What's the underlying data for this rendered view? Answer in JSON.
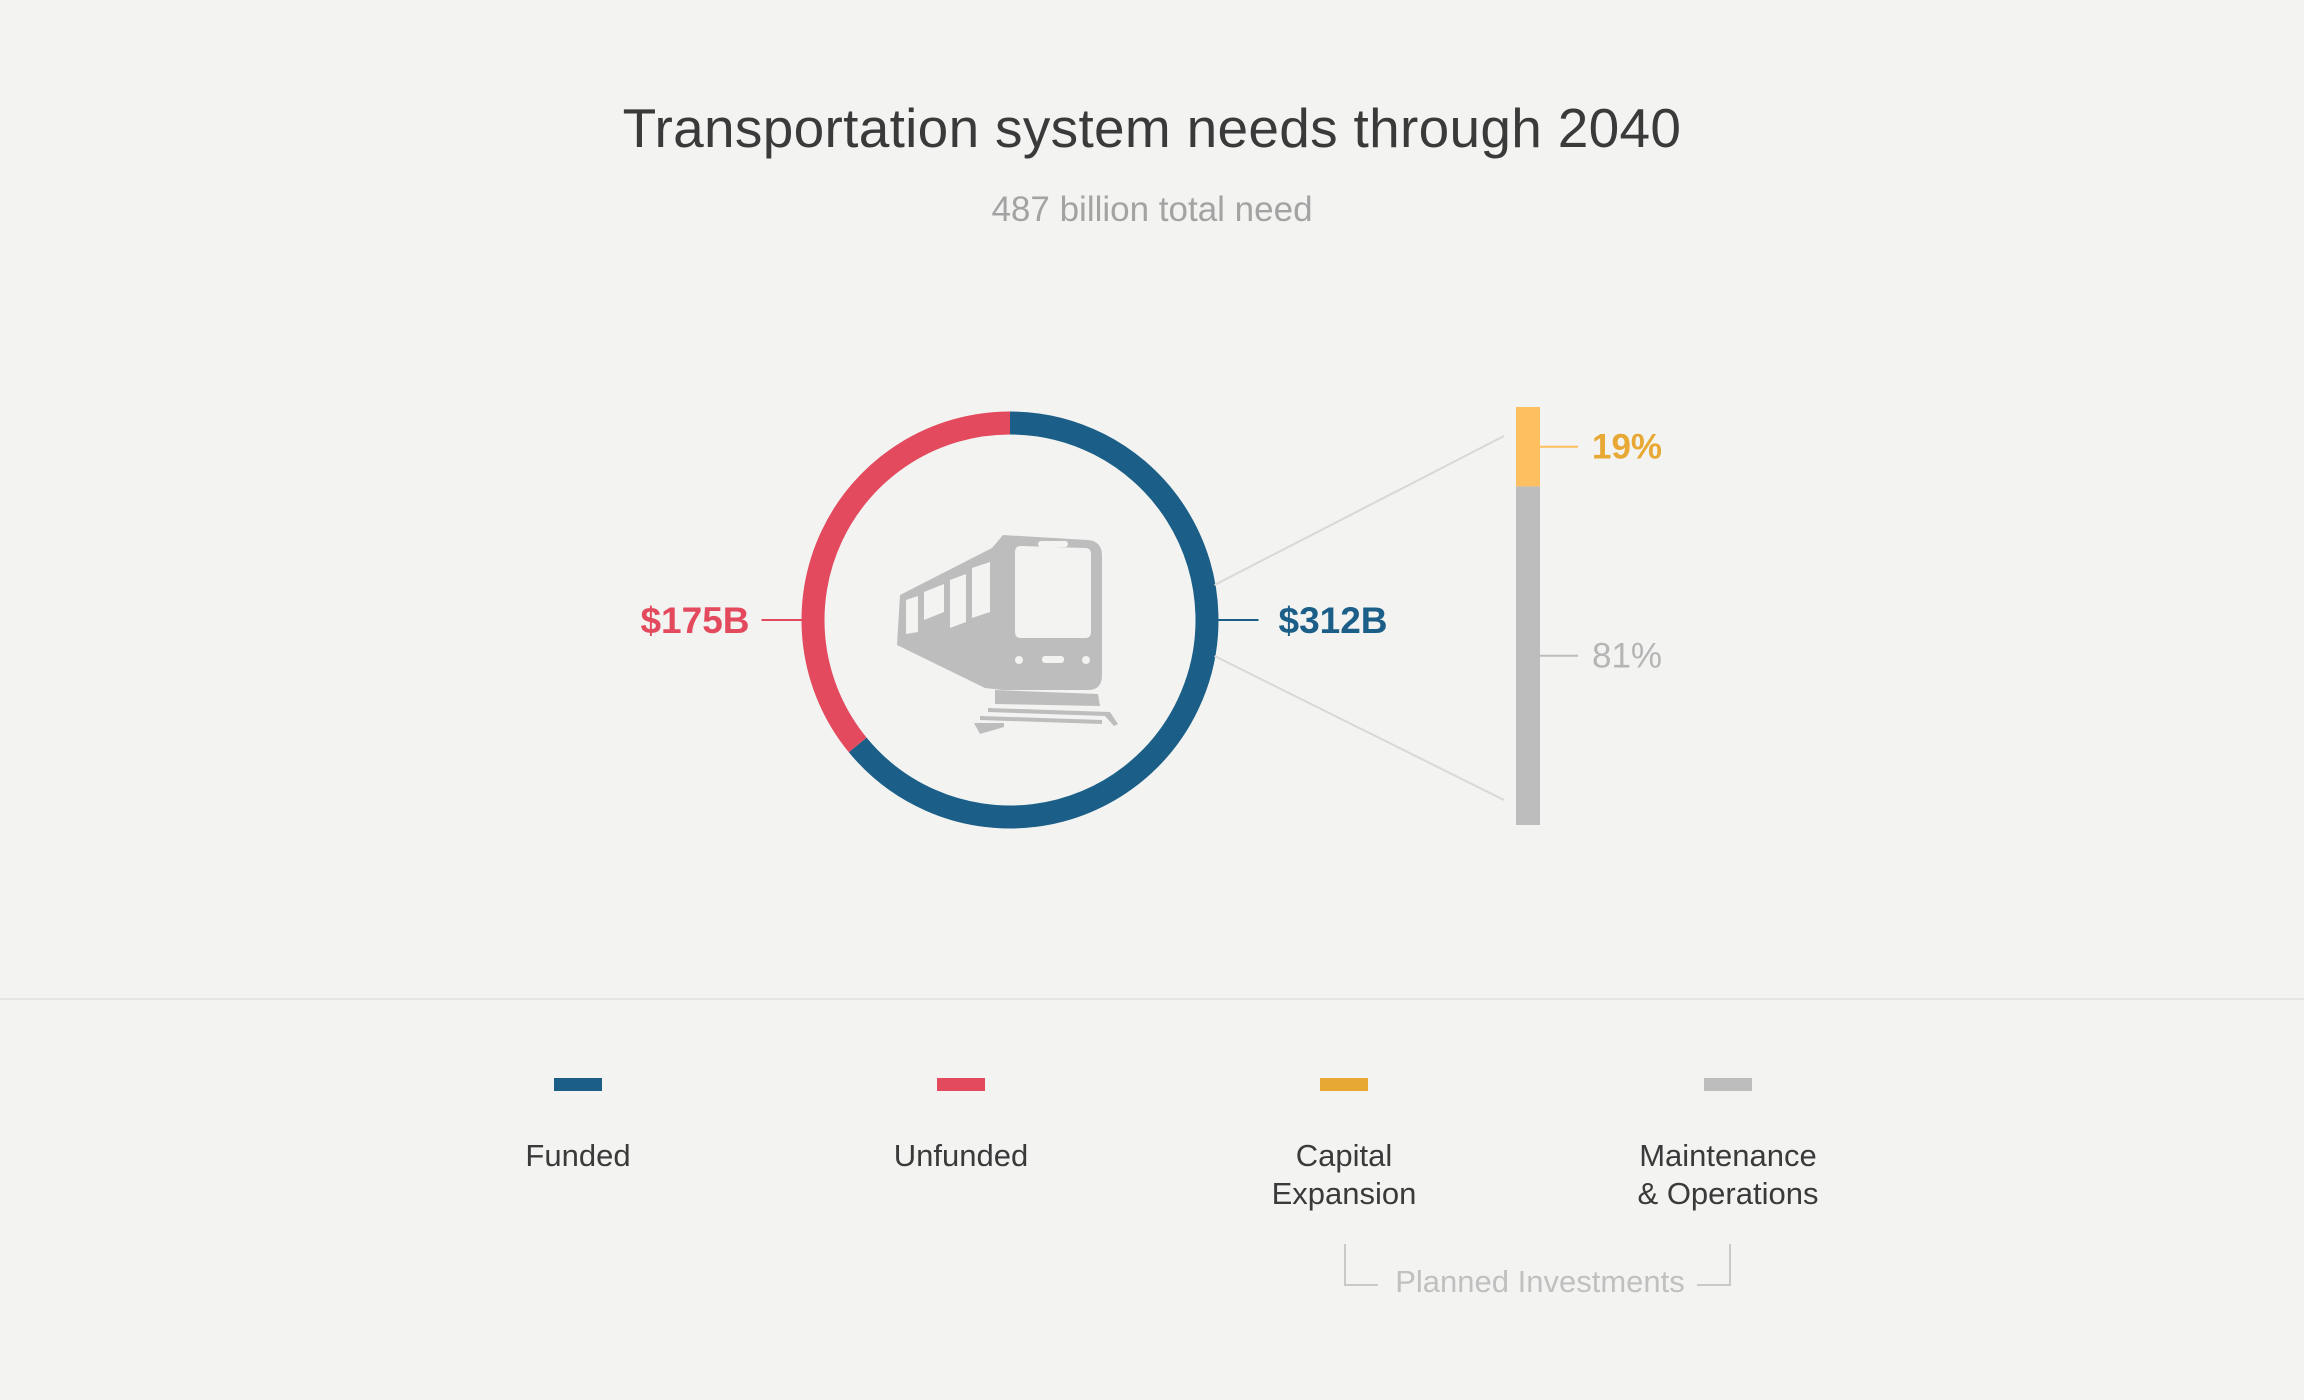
{
  "title": "Transportation system needs through 2040",
  "subtitle": "487 billion total need",
  "chart_data": [
    {
      "type": "pie",
      "style": "donut",
      "center_icon": "train-icon",
      "slices": [
        {
          "name": "Funded",
          "value": 312,
          "label": "$312B",
          "color": "#1b5f88"
        },
        {
          "name": "Unfunded",
          "value": 175,
          "label": "$175B",
          "color": "#e34a5e"
        }
      ]
    },
    {
      "type": "bar",
      "orientation": "vertical",
      "stacked": true,
      "breakdown_of": "Funded",
      "segments": [
        {
          "name": "Capital Expansion",
          "value": 19,
          "label": "19%",
          "color": "#fdbf5f",
          "label_color": "#e8a834"
        },
        {
          "name": "Maintenance & Operations",
          "value": 81,
          "label": "81%",
          "color": "#bdbdbd",
          "label_color": "#b5b5b5"
        }
      ]
    }
  ],
  "legend": [
    {
      "label": "Funded",
      "color": "#1b5f88"
    },
    {
      "label": "Unfunded",
      "color": "#e34a5e"
    },
    {
      "label": "Capital\nExpansion",
      "color": "#e8a834"
    },
    {
      "label": "Maintenance\n& Operations",
      "color": "#bdbdbd"
    }
  ],
  "bracket_label": "Planned Investments"
}
